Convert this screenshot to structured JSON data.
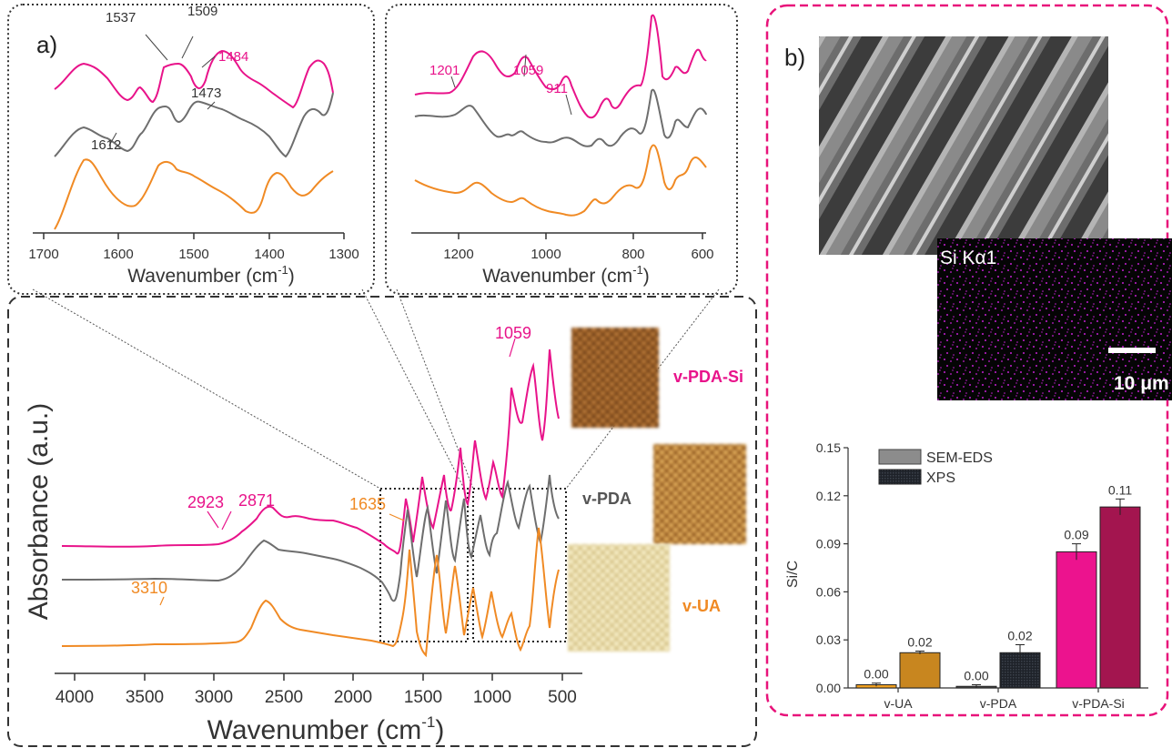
{
  "figure": {
    "panel_a_label": "a)",
    "panel_b_label": "b)",
    "colors": {
      "pink": "#e8138a",
      "gray": "#6e6e6e",
      "orange": "#f08a24",
      "panel_b_border": "#e8137a"
    },
    "main_spectrum": {
      "xlabel": "Wavenumber (cm",
      "xlabel_sup": "-1",
      "xlabel_end": ")",
      "ylabel": "Absorbance (a.u.)",
      "xticks": [
        "4000",
        "3500",
        "3000",
        "2500",
        "2000",
        "1500",
        "1000",
        "500"
      ],
      "annotations": {
        "a2923": "2923",
        "a2871": "2871",
        "a1635": "1635",
        "a3310": "3310",
        "a1059": "1059"
      },
      "sample_labels": {
        "pda_si": "v-PDA-Si",
        "pda": "v-PDA",
        "ua": "v-UA"
      }
    },
    "inset1": {
      "xlabel": "Wavenumber (cm",
      "xlabel_sup": "-1",
      "xlabel_end": ")",
      "xticks": [
        "1700",
        "1600",
        "1500",
        "1400",
        "1300"
      ],
      "annotations": {
        "a1537": "1537",
        "a1509": "1509",
        "a1484": "1484",
        "a1473": "1473",
        "a1612": "1612"
      }
    },
    "inset2": {
      "xlabel": "Wavenumber (cm",
      "xlabel_sup": "-1",
      "xlabel_end": ")",
      "xticks": [
        "1200",
        "1000",
        "800",
        "600"
      ],
      "annotations": {
        "a1201": "1201",
        "a1059": "1059",
        "a911": "911"
      }
    },
    "sem": {
      "map_label": "Si Kα1",
      "scale_bar": "10 μm"
    }
  },
  "chart_data": {
    "type": "bar",
    "title": "",
    "xlabel": "",
    "ylabel": "Si/C",
    "ylim": [
      0,
      0.15
    ],
    "yticks": [
      "0.00",
      "0.03",
      "0.06",
      "0.09",
      "0.12",
      "0.15"
    ],
    "categories": [
      "v-UA",
      "v-PDA",
      "v-PDA-Si"
    ],
    "legend_position": "top-left",
    "series": [
      {
        "name": "SEM-EDS",
        "values": [
          0.002,
          0.001,
          0.085
        ],
        "labels": [
          "0.00",
          "0.00",
          "0.09"
        ],
        "colors": [
          "#f0a020",
          "#505050",
          "#ec138e"
        ],
        "errors": [
          0.001,
          0.001,
          0.005
        ]
      },
      {
        "name": "XPS",
        "values": [
          0.022,
          0.022,
          0.113
        ],
        "labels": [
          "0.02",
          "0.02",
          "0.11"
        ],
        "colors": [
          "#c8861f",
          "#252a33",
          "#a3154f"
        ],
        "errors": [
          0.001,
          0.005,
          0.005
        ]
      }
    ]
  }
}
